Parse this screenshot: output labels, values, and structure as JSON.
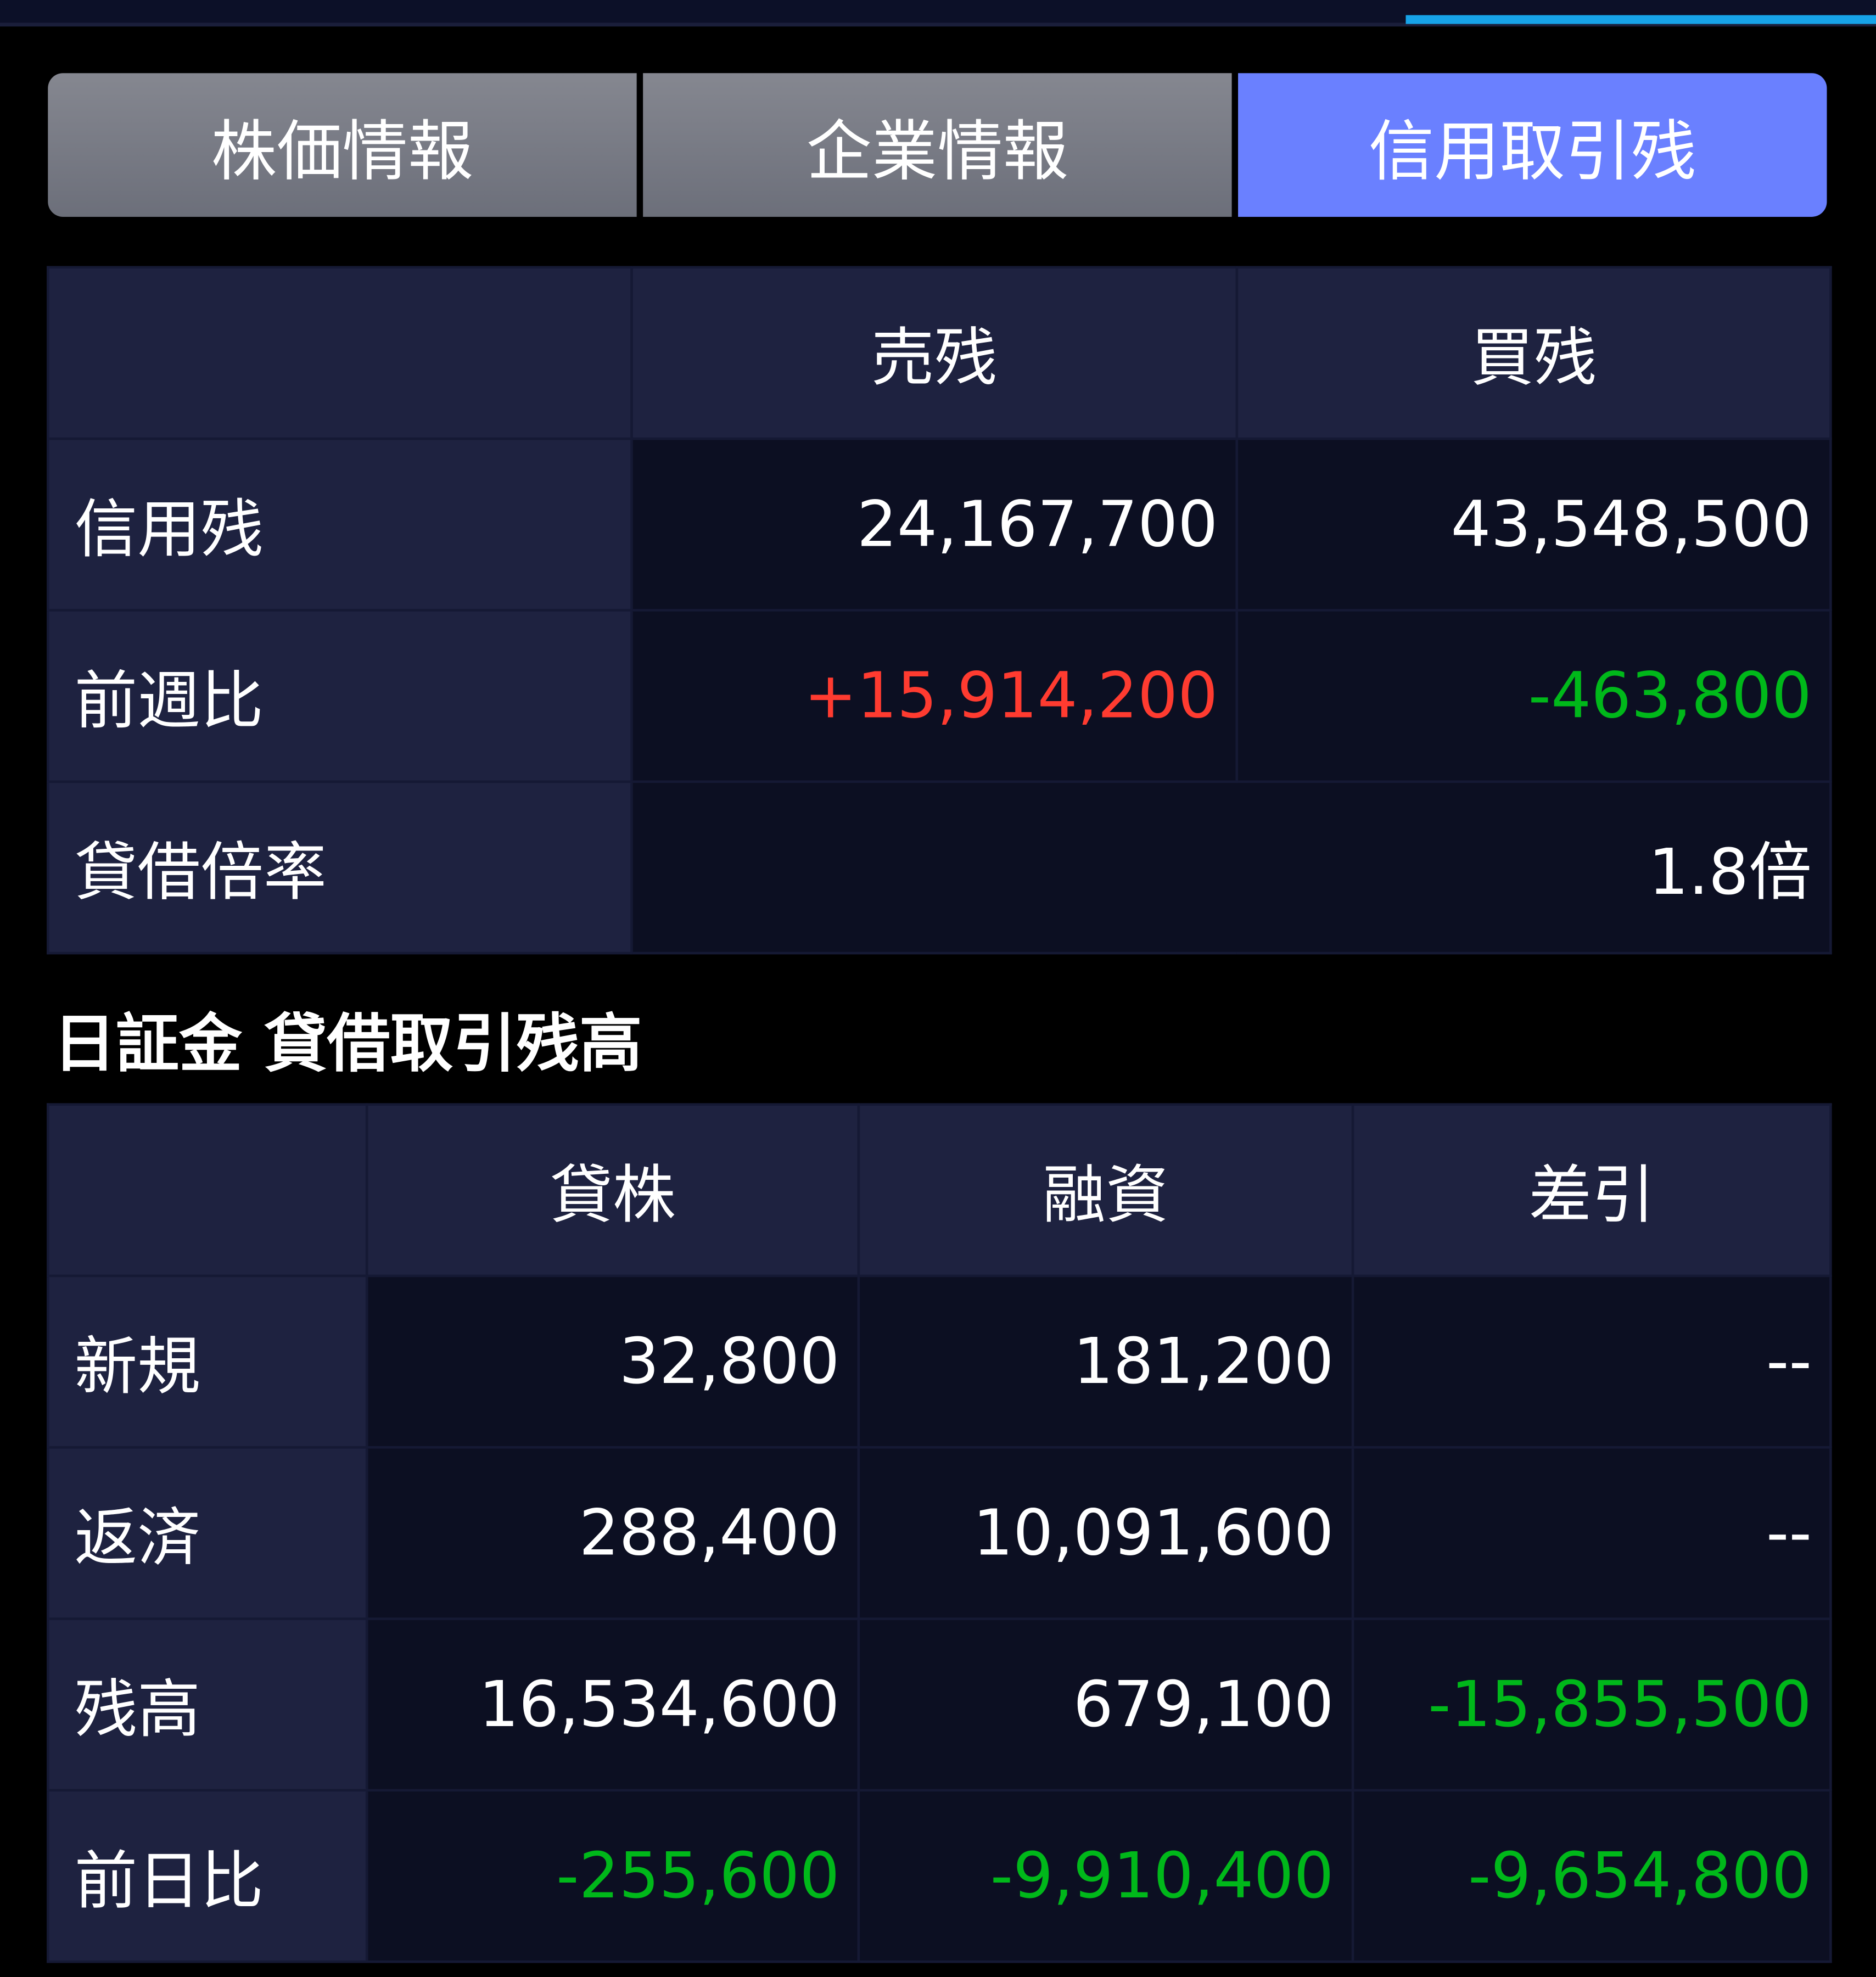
{
  "colors": {
    "accent": "#6a80ff",
    "indicator": "#17a3e8",
    "up": "#ff3b30",
    "down": "#00b81a",
    "text": "#ffffff"
  },
  "tabs": [
    {
      "label": "株価情報",
      "active": false
    },
    {
      "label": "企業情報",
      "active": false
    },
    {
      "label": "信用取引残",
      "active": true
    }
  ],
  "margin": {
    "headers": [
      "",
      "売残",
      "買残"
    ],
    "rows": [
      {
        "label": "信用残",
        "sell": "24,167,700",
        "buy": "43,548,500"
      },
      {
        "label": "前週比",
        "sell": "+15,914,200",
        "buy": "-463,800"
      },
      {
        "label": "貸借倍率",
        "ratio": "1.8倍"
      }
    ]
  },
  "jsf": {
    "title": "日証金 貸借取引残高",
    "headers": [
      "",
      "貸株",
      "融資",
      "差引"
    ],
    "rows": [
      {
        "label": "新規",
        "lend": "32,800",
        "loan": "181,200",
        "diff": "--"
      },
      {
        "label": "返済",
        "lend": "288,400",
        "loan": "10,091,600",
        "diff": "--"
      },
      {
        "label": "残高",
        "lend": "16,534,600",
        "loan": "679,100",
        "diff": "-15,855,500"
      },
      {
        "label": "前日比",
        "lend": "-255,600",
        "loan": "-9,910,400",
        "diff": "-9,654,800"
      }
    ]
  }
}
